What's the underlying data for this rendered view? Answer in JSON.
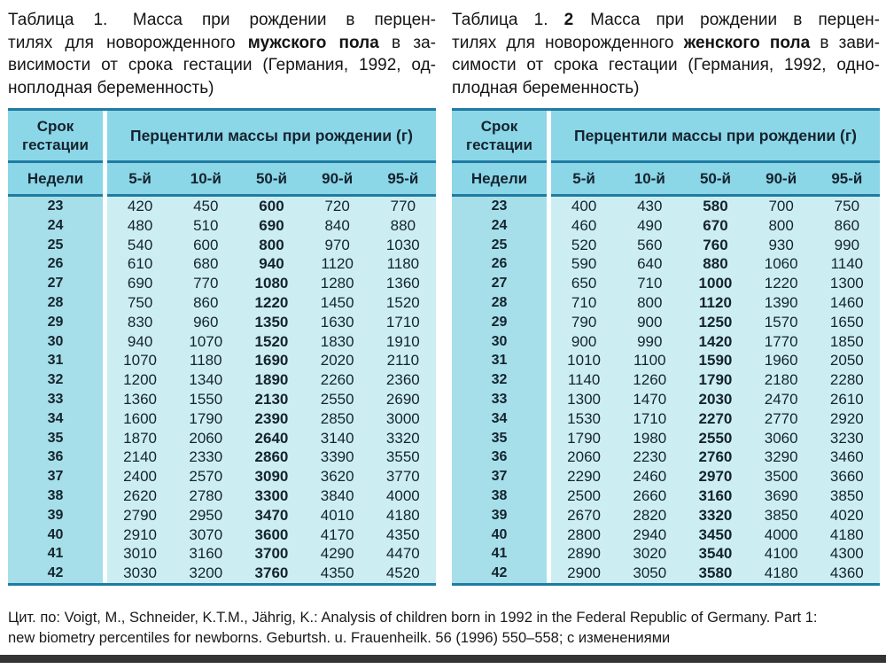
{
  "colors": {
    "header_bg": "#8bd6e7",
    "week_body_bg": "#a6dfe9",
    "data_body_bg": "#cceef3",
    "rule": "#1f7ba1",
    "table_text": "#15232e",
    "band": "#343434"
  },
  "tables": [
    {
      "title_lines": [
        {
          "pre": "Таблица 1.  Масса при рождении в перцен-",
          "bold": "",
          "post": ""
        },
        {
          "pre": "тилях для новорожденного ",
          "bold": "мужского пола",
          "post": " в за-"
        },
        {
          "pre": "висимости от срока гестации (Германия, 1992, од-",
          "bold": "",
          "post": ""
        },
        {
          "pre": "ноплодная беременность)",
          "bold": "",
          "post": ""
        }
      ],
      "header": {
        "col1_title": "Срок гестации",
        "span_title": "Перцентили массы при рождении (г)",
        "col1_sub": "Недели",
        "percentiles": [
          "5-й",
          "10-й",
          "50-й",
          "90-й",
          "95-й"
        ]
      },
      "rows": [
        {
          "week": "23",
          "values": [
            "420",
            "450",
            "600",
            "720",
            "770"
          ]
        },
        {
          "week": "24",
          "values": [
            "480",
            "510",
            "690",
            "840",
            "880"
          ]
        },
        {
          "week": "25",
          "values": [
            "540",
            "600",
            "800",
            "970",
            "1030"
          ]
        },
        {
          "week": "26",
          "values": [
            "610",
            "680",
            "940",
            "1120",
            "1180"
          ]
        },
        {
          "week": "27",
          "values": [
            "690",
            "770",
            "1080",
            "1280",
            "1360"
          ]
        },
        {
          "week": "28",
          "values": [
            "750",
            "860",
            "1220",
            "1450",
            "1520"
          ]
        },
        {
          "week": "29",
          "values": [
            "830",
            "960",
            "1350",
            "1630",
            "1710"
          ]
        },
        {
          "week": "30",
          "values": [
            "940",
            "1070",
            "1520",
            "1830",
            "1910"
          ]
        },
        {
          "week": "31",
          "values": [
            "1070",
            "1180",
            "1690",
            "2020",
            "2110"
          ]
        },
        {
          "week": "32",
          "values": [
            "1200",
            "1340",
            "1890",
            "2260",
            "2360"
          ]
        },
        {
          "week": "33",
          "values": [
            "1360",
            "1550",
            "2130",
            "2550",
            "2690"
          ]
        },
        {
          "week": "34",
          "values": [
            "1600",
            "1790",
            "2390",
            "2850",
            "3000"
          ]
        },
        {
          "week": "35",
          "values": [
            "1870",
            "2060",
            "2640",
            "3140",
            "3320"
          ]
        },
        {
          "week": "36",
          "values": [
            "2140",
            "2330",
            "2860",
            "3390",
            "3550"
          ]
        },
        {
          "week": "37",
          "values": [
            "2400",
            "2570",
            "3090",
            "3620",
            "3770"
          ]
        },
        {
          "week": "38",
          "values": [
            "2620",
            "2780",
            "3300",
            "3840",
            "4000"
          ]
        },
        {
          "week": "39",
          "values": [
            "2790",
            "2950",
            "3470",
            "4010",
            "4180"
          ]
        },
        {
          "week": "40",
          "values": [
            "2910",
            "3070",
            "3600",
            "4170",
            "4350"
          ]
        },
        {
          "week": "41",
          "values": [
            "3010",
            "3160",
            "3700",
            "4290",
            "4470"
          ]
        },
        {
          "week": "42",
          "values": [
            "3030",
            "3200",
            "3760",
            "4350",
            "4520"
          ]
        }
      ]
    },
    {
      "title_lines": [
        {
          "pre": "Таблица 1. ",
          "bold": "2",
          "post": "  Масса при рождении в перцен-"
        },
        {
          "pre": "тилях для новорожденного ",
          "bold": "женского пола",
          "post": " в зави-"
        },
        {
          "pre": "симости от срока гестации (Германия, 1992, одно-",
          "bold": "",
          "post": ""
        },
        {
          "pre": "плодная беременность)",
          "bold": "",
          "post": ""
        }
      ],
      "header": {
        "col1_title": "Срок гестации",
        "span_title": "Перцентили массы при рождении (г)",
        "col1_sub": "Недели",
        "percentiles": [
          "5-й",
          "10-й",
          "50-й",
          "90-й",
          "95-й"
        ]
      },
      "rows": [
        {
          "week": "23",
          "values": [
            "400",
            "430",
            "580",
            "700",
            "750"
          ]
        },
        {
          "week": "24",
          "values": [
            "460",
            "490",
            "670",
            "800",
            "860"
          ]
        },
        {
          "week": "25",
          "values": [
            "520",
            "560",
            "760",
            "930",
            "990"
          ]
        },
        {
          "week": "26",
          "values": [
            "590",
            "640",
            "880",
            "1060",
            "1140"
          ]
        },
        {
          "week": "27",
          "values": [
            "650",
            "710",
            "1000",
            "1220",
            "1300"
          ]
        },
        {
          "week": "28",
          "values": [
            "710",
            "800",
            "1120",
            "1390",
            "1460"
          ]
        },
        {
          "week": "29",
          "values": [
            "790",
            "900",
            "1250",
            "1570",
            "1650"
          ]
        },
        {
          "week": "30",
          "values": [
            "900",
            "990",
            "1420",
            "1770",
            "1850"
          ]
        },
        {
          "week": "31",
          "values": [
            "1010",
            "1100",
            "1590",
            "1960",
            "2050"
          ]
        },
        {
          "week": "32",
          "values": [
            "1140",
            "1260",
            "1790",
            "2180",
            "2280"
          ]
        },
        {
          "week": "33",
          "values": [
            "1300",
            "1470",
            "2030",
            "2470",
            "2610"
          ]
        },
        {
          "week": "34",
          "values": [
            "1530",
            "1710",
            "2270",
            "2770",
            "2920"
          ]
        },
        {
          "week": "35",
          "values": [
            "1790",
            "1980",
            "2550",
            "3060",
            "3230"
          ]
        },
        {
          "week": "36",
          "values": [
            "2060",
            "2230",
            "2760",
            "3290",
            "3460"
          ]
        },
        {
          "week": "37",
          "values": [
            "2290",
            "2460",
            "2970",
            "3500",
            "3660"
          ]
        },
        {
          "week": "38",
          "values": [
            "2500",
            "2660",
            "3160",
            "3690",
            "3850"
          ]
        },
        {
          "week": "39",
          "values": [
            "2670",
            "2820",
            "3320",
            "3850",
            "4020"
          ]
        },
        {
          "week": "40",
          "values": [
            "2800",
            "2940",
            "3450",
            "4000",
            "4180"
          ]
        },
        {
          "week": "41",
          "values": [
            "2890",
            "3020",
            "3540",
            "4100",
            "4300"
          ]
        },
        {
          "week": "42",
          "values": [
            "2900",
            "3050",
            "3580",
            "4180",
            "4360"
          ]
        }
      ]
    }
  ],
  "citation": [
    "Цит. по: Voigt, M., Schneider, K.T.M., Jährig, K.: Analysis of children born in 1992 in the Federal Republic of Germany. Part 1:",
    "new biometry percentiles for newborns. Geburtsh. u. Frauenheilk. 56 (1996) 550–558; с изменениями"
  ]
}
